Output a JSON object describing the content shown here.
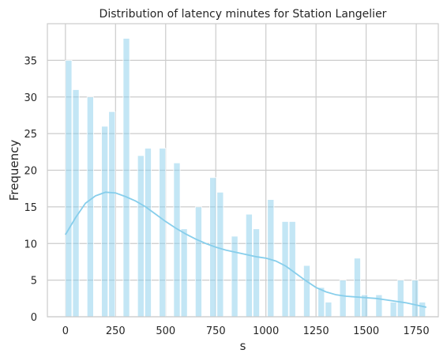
{
  "chart_data": {
    "type": "histogram",
    "title": "Distribution of latency minutes for Station Langelier",
    "xlabel": "s",
    "ylabel": "Frequency",
    "xlim": [
      -90,
      1860
    ],
    "ylim": [
      0,
      40
    ],
    "xticks": [
      0,
      250,
      500,
      750,
      1000,
      1250,
      1500,
      1750
    ],
    "yticks": [
      0,
      5,
      10,
      15,
      20,
      25,
      30,
      35
    ],
    "grid": true,
    "bar_color": "#87CEEB",
    "bar_opacity": 0.5,
    "kde_color": "#87CEEB",
    "bin_width": 36,
    "bins": [
      {
        "x": 0,
        "count": 35
      },
      {
        "x": 36,
        "count": 31
      },
      {
        "x": 108,
        "count": 30
      },
      {
        "x": 180,
        "count": 26
      },
      {
        "x": 216,
        "count": 28
      },
      {
        "x": 288,
        "count": 38
      },
      {
        "x": 360,
        "count": 22
      },
      {
        "x": 396,
        "count": 23
      },
      {
        "x": 468,
        "count": 23
      },
      {
        "x": 540,
        "count": 21
      },
      {
        "x": 576,
        "count": 12
      },
      {
        "x": 648,
        "count": 15
      },
      {
        "x": 720,
        "count": 19
      },
      {
        "x": 756,
        "count": 17
      },
      {
        "x": 828,
        "count": 11
      },
      {
        "x": 900,
        "count": 14
      },
      {
        "x": 936,
        "count": 12
      },
      {
        "x": 1008,
        "count": 16
      },
      {
        "x": 1080,
        "count": 13
      },
      {
        "x": 1116,
        "count": 13
      },
      {
        "x": 1188,
        "count": 7
      },
      {
        "x": 1260,
        "count": 4
      },
      {
        "x": 1296,
        "count": 2
      },
      {
        "x": 1368,
        "count": 5
      },
      {
        "x": 1440,
        "count": 8
      },
      {
        "x": 1476,
        "count": 3
      },
      {
        "x": 1548,
        "count": 3
      },
      {
        "x": 1620,
        "count": 2
      },
      {
        "x": 1656,
        "count": 5
      },
      {
        "x": 1728,
        "count": 5
      },
      {
        "x": 1764,
        "count": 2
      }
    ],
    "kde": {
      "x": [
        0,
        50,
        100,
        150,
        200,
        250,
        300,
        350,
        400,
        450,
        500,
        550,
        600,
        650,
        700,
        750,
        800,
        850,
        900,
        950,
        1000,
        1050,
        1100,
        1150,
        1200,
        1250,
        1300,
        1350,
        1400,
        1450,
        1500,
        1550,
        1600,
        1650,
        1700,
        1750,
        1800
      ],
      "y": [
        11.2,
        13.5,
        15.5,
        16.5,
        17.0,
        16.9,
        16.4,
        15.8,
        15.0,
        14.0,
        13.0,
        12.1,
        11.3,
        10.6,
        10.0,
        9.5,
        9.1,
        8.8,
        8.5,
        8.2,
        8.0,
        7.6,
        6.9,
        5.9,
        4.9,
        4.0,
        3.4,
        3.0,
        2.8,
        2.7,
        2.6,
        2.5,
        2.3,
        2.1,
        1.9,
        1.6,
        1.3
      ]
    }
  }
}
